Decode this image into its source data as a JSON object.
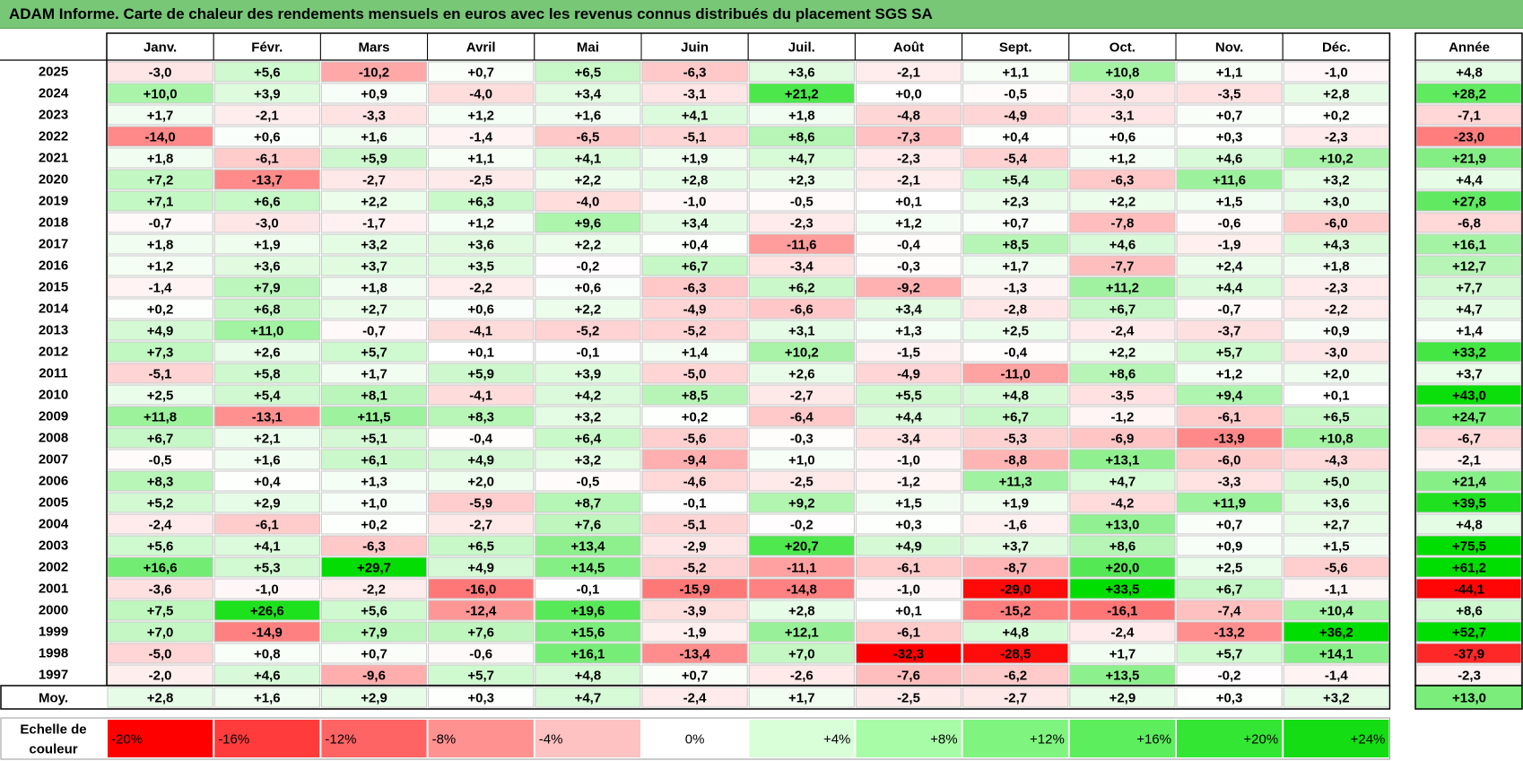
{
  "title": "ADAM Informe. Carte de chaleur des rendements mensuels en euros avec les revenus connus distribués du placement SGS SA",
  "chart_data": {
    "type": "heatmap",
    "months": [
      "Janv.",
      "Févr.",
      "Mars",
      "Avril",
      "Mai",
      "Juin",
      "Juil.",
      "Août",
      "Sept.",
      "Oct.",
      "Nov.",
      "Déc."
    ],
    "annual_header": "Année",
    "avg_label": "Moy.",
    "rows": [
      {
        "year": "2025",
        "values": [
          "-3,0",
          "+5,6",
          "-10,2",
          "+0,7",
          "+6,5",
          "-6,3",
          "+3,6",
          "-2,1",
          "+1,1",
          "+10,8",
          "+1,1",
          "-1,0"
        ],
        "annual": "+4,8"
      },
      {
        "year": "2024",
        "values": [
          "+10,0",
          "+3,9",
          "+0,9",
          "-4,0",
          "+3,4",
          "-3,1",
          "+21,2",
          "+0,0",
          "-0,5",
          "-3,0",
          "-3,5",
          "+2,8"
        ],
        "annual": "+28,2"
      },
      {
        "year": "2023",
        "values": [
          "+1,7",
          "-2,1",
          "-3,3",
          "+1,2",
          "+1,6",
          "+4,1",
          "+1,8",
          "-4,8",
          "-4,9",
          "-3,1",
          "+0,7",
          "+0,2"
        ],
        "annual": "-7,1"
      },
      {
        "year": "2022",
        "values": [
          "-14,0",
          "+0,6",
          "+1,6",
          "-1,4",
          "-6,5",
          "-5,1",
          "+8,6",
          "-7,3",
          "+0,4",
          "+0,6",
          "+0,3",
          "-2,3"
        ],
        "annual": "-23,0"
      },
      {
        "year": "2021",
        "values": [
          "+1,8",
          "-6,1",
          "+5,9",
          "+1,1",
          "+4,1",
          "+1,9",
          "+4,7",
          "-2,3",
          "-5,4",
          "+1,2",
          "+4,6",
          "+10,2"
        ],
        "annual": "+21,9"
      },
      {
        "year": "2020",
        "values": [
          "+7,2",
          "-13,7",
          "-2,7",
          "-2,5",
          "+2,2",
          "+2,8",
          "+2,3",
          "-2,1",
          "+5,4",
          "-6,3",
          "+11,6",
          "+3,2"
        ],
        "annual": "+4,4"
      },
      {
        "year": "2019",
        "values": [
          "+7,1",
          "+6,6",
          "+2,2",
          "+6,3",
          "-4,0",
          "-1,0",
          "-0,5",
          "+0,1",
          "+2,3",
          "+2,2",
          "+1,5",
          "+3,0"
        ],
        "annual": "+27,8"
      },
      {
        "year": "2018",
        "values": [
          "-0,7",
          "-3,0",
          "-1,7",
          "+1,2",
          "+9,6",
          "+3,4",
          "-2,3",
          "+1,2",
          "+0,7",
          "-7,8",
          "-0,6",
          "-6,0"
        ],
        "annual": "-6,8"
      },
      {
        "year": "2017",
        "values": [
          "+1,8",
          "+1,9",
          "+3,2",
          "+3,6",
          "+2,2",
          "+0,4",
          "-11,6",
          "-0,4",
          "+8,5",
          "+4,6",
          "-1,9",
          "+4,3"
        ],
        "annual": "+16,1"
      },
      {
        "year": "2016",
        "values": [
          "+1,2",
          "+3,6",
          "+3,7",
          "+3,5",
          "-0,2",
          "+6,7",
          "-3,4",
          "-0,3",
          "+1,7",
          "-7,7",
          "+2,4",
          "+1,8"
        ],
        "annual": "+12,7"
      },
      {
        "year": "2015",
        "values": [
          "-1,4",
          "+7,9",
          "+1,8",
          "-2,2",
          "+0,6",
          "-6,3",
          "+6,2",
          "-9,2",
          "-1,3",
          "+11,2",
          "+4,4",
          "-2,3"
        ],
        "annual": "+7,7"
      },
      {
        "year": "2014",
        "values": [
          "+0,2",
          "+6,8",
          "+2,7",
          "+0,6",
          "+2,2",
          "-4,9",
          "-6,6",
          "+3,4",
          "-2,8",
          "+6,7",
          "-0,7",
          "-2,2"
        ],
        "annual": "+4,7"
      },
      {
        "year": "2013",
        "values": [
          "+4,9",
          "+11,0",
          "-0,7",
          "-4,1",
          "-5,2",
          "-5,2",
          "+3,1",
          "+1,3",
          "+2,5",
          "-2,4",
          "-3,7",
          "+0,9"
        ],
        "annual": "+1,4"
      },
      {
        "year": "2012",
        "values": [
          "+7,3",
          "+2,6",
          "+5,7",
          "+0,1",
          "-0,1",
          "+1,4",
          "+10,2",
          "-1,5",
          "-0,4",
          "+2,2",
          "+5,7",
          "-3,0"
        ],
        "annual": "+33,2"
      },
      {
        "year": "2011",
        "values": [
          "-5,1",
          "+5,8",
          "+1,7",
          "+5,9",
          "+3,9",
          "-5,0",
          "+2,6",
          "-4,9",
          "-11,0",
          "+8,6",
          "+1,2",
          "+2,0"
        ],
        "annual": "+3,7"
      },
      {
        "year": "2010",
        "values": [
          "+2,5",
          "+5,4",
          "+8,1",
          "-4,1",
          "+4,2",
          "+8,5",
          "-2,7",
          "+5,5",
          "+4,8",
          "-3,5",
          "+9,4",
          "+0,1"
        ],
        "annual": "+43,0"
      },
      {
        "year": "2009",
        "values": [
          "+11,8",
          "-13,1",
          "+11,5",
          "+8,3",
          "+3,2",
          "+0,2",
          "-6,4",
          "+4,4",
          "+6,7",
          "-1,2",
          "-6,1",
          "+6,5"
        ],
        "annual": "+24,7"
      },
      {
        "year": "2008",
        "values": [
          "+6,7",
          "+2,1",
          "+5,1",
          "-0,4",
          "+6,4",
          "-5,6",
          "-0,3",
          "-3,4",
          "-5,3",
          "-6,9",
          "-13,9",
          "+10,8"
        ],
        "annual": "-6,7"
      },
      {
        "year": "2007",
        "values": [
          "-0,5",
          "+1,6",
          "+6,1",
          "+4,9",
          "+3,2",
          "-9,4",
          "+1,0",
          "-1,0",
          "-8,8",
          "+13,1",
          "-6,0",
          "-4,3"
        ],
        "annual": "-2,1"
      },
      {
        "year": "2006",
        "values": [
          "+8,3",
          "+0,4",
          "+1,3",
          "+2,0",
          "-0,5",
          "-4,6",
          "-2,5",
          "-1,2",
          "+11,3",
          "+4,7",
          "-3,3",
          "+5,0"
        ],
        "annual": "+21,4"
      },
      {
        "year": "2005",
        "values": [
          "+5,2",
          "+2,9",
          "+1,0",
          "-5,9",
          "+8,7",
          "-0,1",
          "+9,2",
          "+1,5",
          "+1,9",
          "-4,2",
          "+11,9",
          "+3,6"
        ],
        "annual": "+39,5"
      },
      {
        "year": "2004",
        "values": [
          "-2,4",
          "-6,1",
          "+0,2",
          "-2,7",
          "+7,6",
          "-5,1",
          "-0,2",
          "+0,3",
          "-1,6",
          "+13,0",
          "+0,7",
          "+2,7"
        ],
        "annual": "+4,8"
      },
      {
        "year": "2003",
        "values": [
          "+5,6",
          "+4,1",
          "-6,3",
          "+6,5",
          "+13,4",
          "-2,9",
          "+20,7",
          "+4,9",
          "+3,7",
          "+8,6",
          "+0,9",
          "+1,5"
        ],
        "annual": "+75,5"
      },
      {
        "year": "2002",
        "values": [
          "+16,6",
          "+5,3",
          "+29,7",
          "+4,9",
          "+14,5",
          "-5,2",
          "-11,1",
          "-6,1",
          "-8,7",
          "+20,0",
          "+2,5",
          "-5,6"
        ],
        "annual": "+61,2"
      },
      {
        "year": "2001",
        "values": [
          "-3,6",
          "-1,0",
          "-2,2",
          "-16,0",
          "-0,1",
          "-15,9",
          "-14,8",
          "-1,0",
          "-29,0",
          "+33,5",
          "+6,7",
          "-1,1"
        ],
        "annual": "-44,1"
      },
      {
        "year": "2000",
        "values": [
          "+7,5",
          "+26,6",
          "+5,6",
          "-12,4",
          "+19,6",
          "-3,9",
          "+2,8",
          "+0,1",
          "-15,2",
          "-16,1",
          "-7,4",
          "+10,4"
        ],
        "annual": "+8,6"
      },
      {
        "year": "1999",
        "values": [
          "+7,0",
          "-14,9",
          "+7,9",
          "+7,6",
          "+15,6",
          "-1,9",
          "+12,1",
          "-6,1",
          "+4,8",
          "-2,4",
          "-13,2",
          "+36,2"
        ],
        "annual": "+52,7"
      },
      {
        "year": "1998",
        "values": [
          "-5,0",
          "+0,8",
          "+0,7",
          "-0,6",
          "+16,1",
          "-13,4",
          "+7,0",
          "-32,3",
          "-28,5",
          "+1,7",
          "+5,7",
          "+14,1"
        ],
        "annual": "-37,9"
      },
      {
        "year": "1997",
        "values": [
          "-2,0",
          "+4,6",
          "-9,6",
          "+5,7",
          "+4,8",
          "+0,7",
          "-2,6",
          "-7,6",
          "-6,2",
          "+13,5",
          "-0,2",
          "-1,4"
        ],
        "annual": "-2,3"
      }
    ],
    "averages": [
      "+2,8",
      "+1,6",
      "+2,9",
      "+0,3",
      "+4,7",
      "-2,4",
      "+1,7",
      "-2,5",
      "-2,7",
      "+2,9",
      "+0,3",
      "+3,2"
    ],
    "average_annual": "+13,0",
    "color_scale": {
      "label_line1": "Echelle de",
      "label_line2": "couleur",
      "steps": [
        {
          "label": "-20%",
          "value": -20,
          "color": "#ff0000"
        },
        {
          "label": "-16%",
          "value": -16,
          "color": "#ff3b3b"
        },
        {
          "label": "-12%",
          "value": -12,
          "color": "#ff6464"
        },
        {
          "label": "-8%",
          "value": -8,
          "color": "#ff9191"
        },
        {
          "label": "-4%",
          "value": -4,
          "color": "#ffc2c2"
        },
        {
          "label": "0%",
          "value": 0,
          "color": "#ffffff"
        },
        {
          "label": "+4%",
          "value": 4,
          "color": "#d9ffd9"
        },
        {
          "label": "+8%",
          "value": 8,
          "color": "#a8fca8"
        },
        {
          "label": "+12%",
          "value": 12,
          "color": "#7ff47f"
        },
        {
          "label": "+16%",
          "value": 16,
          "color": "#5cee5c"
        },
        {
          "label": "+20%",
          "value": 20,
          "color": "#33e633"
        },
        {
          "label": "+24%",
          "value": 24,
          "color": "#14dd14"
        }
      ]
    },
    "colors": {
      "title_bar": "#77c777",
      "negative_max": "#ff0000",
      "positive_max": "#00dd00",
      "neutral": "#ffffff",
      "grid": "#bfbfbf"
    }
  }
}
